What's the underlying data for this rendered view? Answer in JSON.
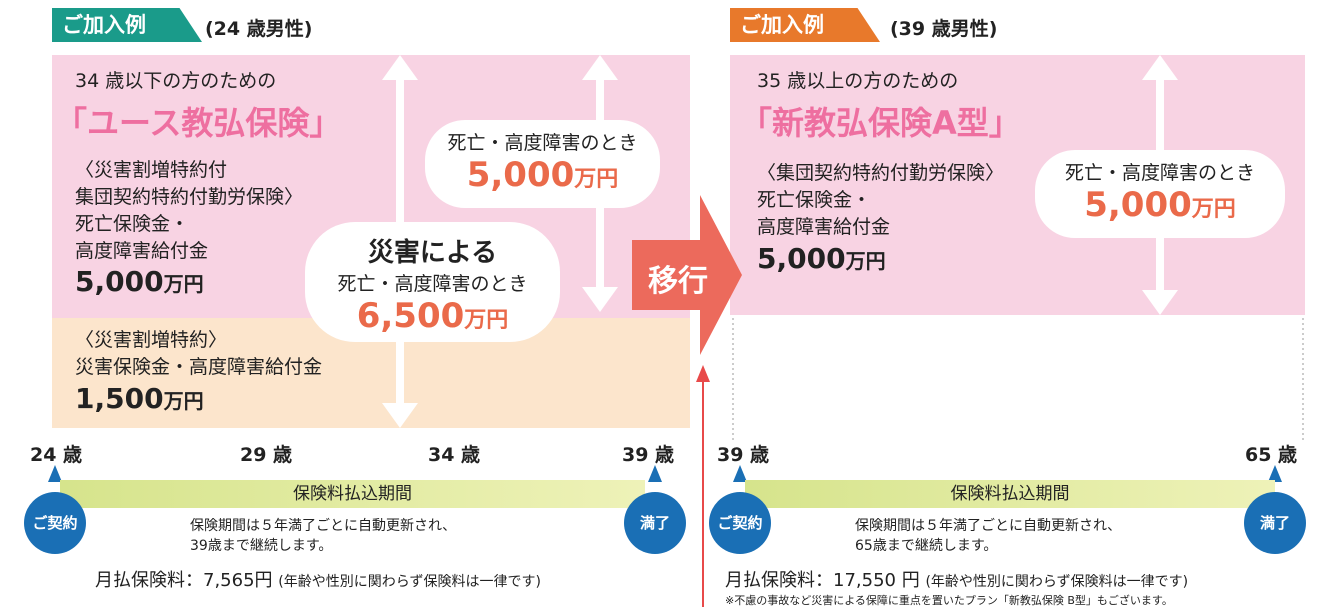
{
  "left": {
    "badge": "ご加入例",
    "badge_note": "(24 歳男性)",
    "target": "34 歳以下の方のための",
    "product": "「ユース教弘保険」",
    "rider1": "〈災害割増特約付",
    "rider2": "集団契約特約付勤労保険〉",
    "benefit1": "死亡保険金・",
    "benefit2": "高度障害給付金",
    "amount": "5,000",
    "amount_unit": "万円",
    "disaster_rider": "〈災害割増特約〉",
    "disaster_benefit": "災害保険金・高度障害給付金",
    "disaster_amount": "1,500",
    "disaster_unit": "万円",
    "bubble1": {
      "label": "死亡・高度障害のとき",
      "amount": "5,000",
      "unit": "万円"
    },
    "bubble2": {
      "title": "災害による",
      "label": "死亡・高度障害のとき",
      "amount": "6,500",
      "unit": "万円"
    },
    "ages": [
      "24 歳",
      "29 歳",
      "34 歳",
      "39 歳"
    ],
    "period": "保険料払込期間",
    "start": "ご契約",
    "end": "満了",
    "note1": "保険期間は５年満了ごとに自動更新され、",
    "note2": "39歳まで継続します。",
    "premium": "月払保険料：7,565円",
    "premium_note": "(年齢や性別に関わらず保険料は一律です)"
  },
  "middle": {
    "label": "移行"
  },
  "right": {
    "badge": "ご加入例",
    "badge_note": "(39 歳男性)",
    "target": "35 歳以上の方のための",
    "product": "「新教弘保険A型」",
    "rider1": "〈集団契約特約付勤労保険〉",
    "benefit1": "死亡保険金・",
    "benefit2": "高度障害給付金",
    "amount": "5,000",
    "amount_unit": "万円",
    "bubble": {
      "label": "死亡・高度障害のとき",
      "amount": "5,000",
      "unit": "万円"
    },
    "ages": [
      "39 歳",
      "65 歳"
    ],
    "period": "保険料払込期間",
    "start": "ご契約",
    "end": "満了",
    "note1": "保険期間は５年満了ごとに自動更新され、",
    "note2": "65歳まで継続します。",
    "premium": "月払保険料：17,550 円",
    "premium_note": "(年齢や性別に関わらず保険料は一律です)",
    "footnote": "※不慮の事故など災害による保障に重点を置いたプラン「新教弘保険 B型」もございます。"
  }
}
